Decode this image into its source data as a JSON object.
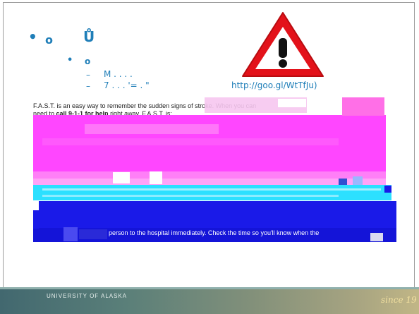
{
  "slide": {
    "bullet1_symbol": "•",
    "heading_fragment_a": "o",
    "heading_fragment_b": "Ů",
    "bullet2_symbol": "•",
    "subheading_fragment": "o",
    "sub1_dash": "–",
    "sub1_text": "M  .  .  .  .",
    "sub2_dash": "–",
    "sub2_text": "7  .  .  .  '=  .  \"",
    "url": "http://goo.gl/WtTfJu)"
  },
  "article": {
    "line1": "F.A.S.T. is an easy way to remember the sudden signs of stroke. When you can",
    "line2_prefix": "need to ",
    "line2_bold": "call 9-1-1 for help",
    "line2_suffix": " right away. F.A.S.T. is:",
    "line3": "person to the hospital immediately. Check the time so you'll know when the"
  },
  "footer": {
    "logo_text": "UNIVERSITY OF ALASKA",
    "since_text": "since 19"
  },
  "colors": {
    "accent": "#1f7eb8",
    "warning_red": "#e3121a",
    "magenta": "#ff46ff",
    "cyan": "#2ce0ff",
    "blue": "#1a1ae8"
  }
}
